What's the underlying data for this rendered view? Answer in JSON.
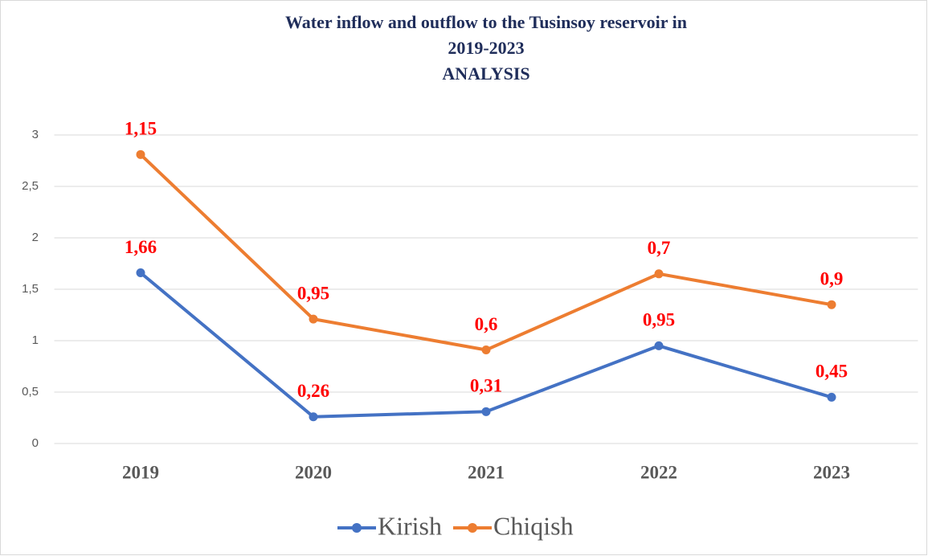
{
  "chart_data": {
    "type": "line",
    "stacked": true,
    "title": [
      "Water inflow and outflow to the Tusinsoy reservoir in",
      "2019-2023",
      "ANALYSIS"
    ],
    "categories": [
      "2019",
      "2020",
      "2021",
      "2022",
      "2023"
    ],
    "series": [
      {
        "name": "Kirish",
        "color": "#4472c4",
        "values": [
          1.66,
          0.26,
          0.31,
          0.95,
          0.45
        ],
        "value_labels": [
          "1,66",
          "0,26",
          "0,31",
          "0,95",
          "0,45"
        ]
      },
      {
        "name": "Chiqish",
        "color": "#ed7d31",
        "values": [
          1.15,
          0.95,
          0.6,
          0.7,
          0.9
        ],
        "value_labels": [
          "1,15",
          "0,95",
          "0,6",
          "0,7",
          "0,9"
        ]
      }
    ],
    "ylim": [
      0,
      3
    ],
    "yticks": [
      0,
      {
        "value": 0.5,
        "label": "0,5"
      },
      1,
      {
        "value": 1.5,
        "label": "1,5"
      },
      2,
      {
        "value": 2.5,
        "label": "2,5"
      },
      3
    ],
    "grid": true,
    "legend": "bottom"
  }
}
